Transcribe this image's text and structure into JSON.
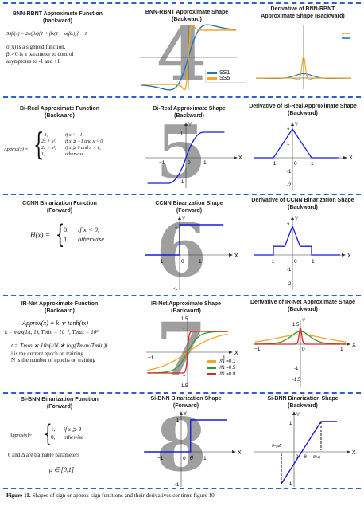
{
  "rows": [
    {
      "id": "bnn-rbnt",
      "number": "4",
      "func_title": [
        "BNN-RBNT Approximate Function",
        "(backward)"
      ],
      "formula_lines": [
        "SSβ(x) = 2σ(βx)[1 + βx(1 − σ(βx))] − 1",
        "σ(x) is a sigmoid function,",
        "β > 0 is a parameter to control",
        "asymptotes to -1 and +1"
      ],
      "shape_title": [
        "BNN-RBNT Approximate Shape",
        "(Backward)"
      ],
      "deriv_title": [
        "Derivative of BNN-RBNT",
        "Approximate Shape (Backward)"
      ],
      "legend": [
        {
          "label": "SS1",
          "color": "#1f77b4"
        },
        {
          "label": "SS5",
          "color": "#f5a623"
        }
      ]
    },
    {
      "id": "bi-real",
      "number": "5",
      "func_title": [
        "Bi-Real Approximate Function",
        "(Backward)"
      ],
      "approx_label": "Approx(x) =",
      "cases": [
        [
          "−1,",
          "if x < −1,"
        ],
        [
          "2x + x²,",
          "if x ⩾ −1 and x < 0"
        ],
        [
          "2x − x²,",
          "if x ⩾ 0 and x < 1,"
        ],
        [
          "1,",
          "otherwise."
        ]
      ],
      "shape_title": [
        "Bi-Real Approximate Shape",
        "(Backward)"
      ],
      "deriv_title": [
        "Derivative of Bi-Real Approximate Shape",
        "(Backward)"
      ],
      "shape_ticks": {
        "y": "Y",
        "x": "X",
        "one": "1",
        "neg_one": "−1",
        "zero": "0",
        "neg_one_y": "-1"
      },
      "deriv_ticks": {
        "y": "Y",
        "x": "X",
        "two": "2",
        "one": "1",
        "neg_one": "−1",
        "zero": "0",
        "one_x": "1",
        "neg_one_y": "-1",
        "neg_two_y": "-2"
      }
    },
    {
      "id": "ccnn",
      "number": "6",
      "func_title": [
        "CCNN Binarization Function",
        "(Forward)"
      ],
      "h_label": "H(x) =",
      "cases": [
        [
          "0,",
          "if x < 0,"
        ],
        [
          "1,",
          "otherwise."
        ]
      ],
      "shape_title": [
        "CCNN Binarization Shape",
        "(Forward)"
      ],
      "deriv_title": [
        "Derivative of CCNN Binarization Shape",
        "(Backward)"
      ],
      "shape_ticks": {
        "y": "Y",
        "x": "X",
        "one": "1",
        "neg_one": "−1",
        "zero": "0",
        "neg_one_y": "-1"
      },
      "deriv_ticks": {
        "y": "Y",
        "x": "X",
        "two": "2",
        "neg_one": "−1",
        "zero": "0",
        "one_x": "1",
        "neg_one_y": "-1",
        "neg_two_y": "-2"
      }
    },
    {
      "id": "ir-net",
      "number": "7",
      "func_title": [
        "IR-Net Approximate Function",
        "(Backward)"
      ],
      "formula_lines": [
        "Approx(x) = k ∗ tanh(tx)",
        "k = max(1/t, 1), Tmin = 10⁻¹, Tmax = 10²",
        "t = Tmin ∗ 10^(i/N ∗ log(Tmax/Tmin))",
        "i is the current epoch on training",
        "N is the number of epochs on training"
      ],
      "shape_title": [
        "IR-Net Approximate Shape",
        "(Backward)"
      ],
      "deriv_title": [
        "Derivative of IR-Net Approximate Shape",
        "(Backward)"
      ],
      "shape_ticks": {
        "top": "1.5",
        "one": "1",
        "neg_one": "−1",
        "one_x": "1",
        "x": "X",
        "y": "Y",
        "neg_one_y": "-1",
        "neg_15": "-1.5"
      },
      "deriv_ticks": {
        "top": "1.5",
        "y": "Y",
        "neg_one": "−1",
        "zero": "0",
        "one_x": "1",
        "x": "X",
        "neg_one_y": "-1",
        "neg_15": "-1.5"
      },
      "legend": [
        {
          "label": "i/N =0.1",
          "color": "#f5a623"
        },
        {
          "label": "i/N =0.5",
          "color": "#2e9e2e"
        },
        {
          "label": "i/N =0.8",
          "color": "#d62728"
        }
      ]
    },
    {
      "id": "si-bnn",
      "number": "8",
      "func_title": [
        "Si-BNN Binarization Function",
        "(Forward)"
      ],
      "approx_label": "Approx(x)=",
      "cases": [
        [
          "1,",
          "if x ⩾ θ"
        ],
        [
          "0,",
          "othewise"
        ]
      ],
      "param_text": "θ and Δ are trainable parameters",
      "rho_text": "ρ ∈ [0,1]",
      "shape_title": [
        "Si-BNN Binarization Shape",
        "(Forward)"
      ],
      "deriv_title": [
        "Si-BNN Binarization Shape",
        "(Backward)"
      ],
      "shape_ticks": {
        "y": "Y",
        "x": "X",
        "one": "1",
        "neg_one": "−1",
        "zero": "0",
        "theta": "θ",
        "one_x": "1",
        "neg_one_y": "-1"
      },
      "deriv_ticks": {
        "y": "Y",
        "x": "X",
        "one": "1",
        "zero": "0",
        "theta": "θ",
        "theta_minus": "θ−ρΔ",
        "theta_plus": "θ+Δ",
        "neg_one_y": "-1"
      }
    }
  ],
  "caption": {
    "label": "Figure 11.",
    "text": " Shapes of sign or approx-sign functions and their derivatives continue figure 10."
  }
}
